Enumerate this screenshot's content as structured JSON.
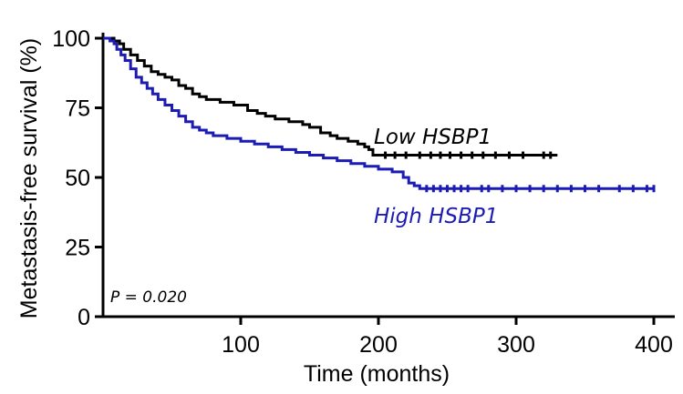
{
  "chart_data": {
    "type": "line",
    "step": true,
    "xlabel": "Time (months)",
    "ylabel": "Metastasis-free survival (%)",
    "xlim": [
      0,
      410
    ],
    "ylim": [
      0,
      102
    ],
    "xticks": [
      100,
      200,
      300,
      400
    ],
    "yticks": [
      0,
      25,
      50,
      75,
      100
    ],
    "grid": false,
    "annotation": "P = 0.020",
    "series": [
      {
        "name": "Low HSBP1",
        "color": "#000000",
        "points": [
          [
            0,
            100
          ],
          [
            5,
            100
          ],
          [
            8,
            99
          ],
          [
            12,
            98
          ],
          [
            15,
            96
          ],
          [
            20,
            94
          ],
          [
            25,
            92
          ],
          [
            30,
            90
          ],
          [
            35,
            88
          ],
          [
            40,
            87
          ],
          [
            45,
            86
          ],
          [
            50,
            85
          ],
          [
            55,
            83
          ],
          [
            60,
            82
          ],
          [
            65,
            80
          ],
          [
            70,
            79
          ],
          [
            75,
            78
          ],
          [
            85,
            77
          ],
          [
            95,
            76
          ],
          [
            105,
            74
          ],
          [
            112,
            73
          ],
          [
            118,
            72
          ],
          [
            125,
            71
          ],
          [
            135,
            70
          ],
          [
            145,
            69
          ],
          [
            150,
            68
          ],
          [
            158,
            66
          ],
          [
            165,
            65
          ],
          [
            170,
            64
          ],
          [
            178,
            63
          ],
          [
            185,
            62
          ],
          [
            190,
            61
          ],
          [
            193,
            60
          ],
          [
            196,
            58
          ],
          [
            200,
            58
          ],
          [
            330,
            58
          ]
        ],
        "censor_x": [
          205,
          212,
          220,
          230,
          238,
          245,
          252,
          260,
          268,
          276,
          285,
          295,
          305,
          320,
          325
        ]
      },
      {
        "name": "High HSBP1",
        "color": "#1c1cb4",
        "points": [
          [
            0,
            100
          ],
          [
            3,
            100
          ],
          [
            5,
            99
          ],
          [
            8,
            98
          ],
          [
            10,
            96
          ],
          [
            13,
            94
          ],
          [
            16,
            92
          ],
          [
            20,
            89
          ],
          [
            24,
            86
          ],
          [
            28,
            84
          ],
          [
            32,
            82
          ],
          [
            36,
            80
          ],
          [
            40,
            78
          ],
          [
            45,
            76
          ],
          [
            50,
            74
          ],
          [
            55,
            72
          ],
          [
            60,
            70
          ],
          [
            65,
            68
          ],
          [
            70,
            67
          ],
          [
            75,
            66
          ],
          [
            80,
            65
          ],
          [
            90,
            64
          ],
          [
            100,
            63
          ],
          [
            110,
            62
          ],
          [
            120,
            61
          ],
          [
            130,
            60
          ],
          [
            140,
            59
          ],
          [
            150,
            58
          ],
          [
            160,
            57
          ],
          [
            170,
            56
          ],
          [
            180,
            55
          ],
          [
            190,
            54
          ],
          [
            200,
            53
          ],
          [
            210,
            52
          ],
          [
            218,
            50
          ],
          [
            222,
            48
          ],
          [
            226,
            47
          ],
          [
            230,
            46
          ],
          [
            400,
            46
          ]
        ],
        "censor_x": [
          235,
          240,
          245,
          250,
          255,
          260,
          265,
          275,
          280,
          290,
          300,
          310,
          320,
          330,
          340,
          350,
          360,
          375,
          385,
          395,
          400
        ]
      }
    ]
  }
}
